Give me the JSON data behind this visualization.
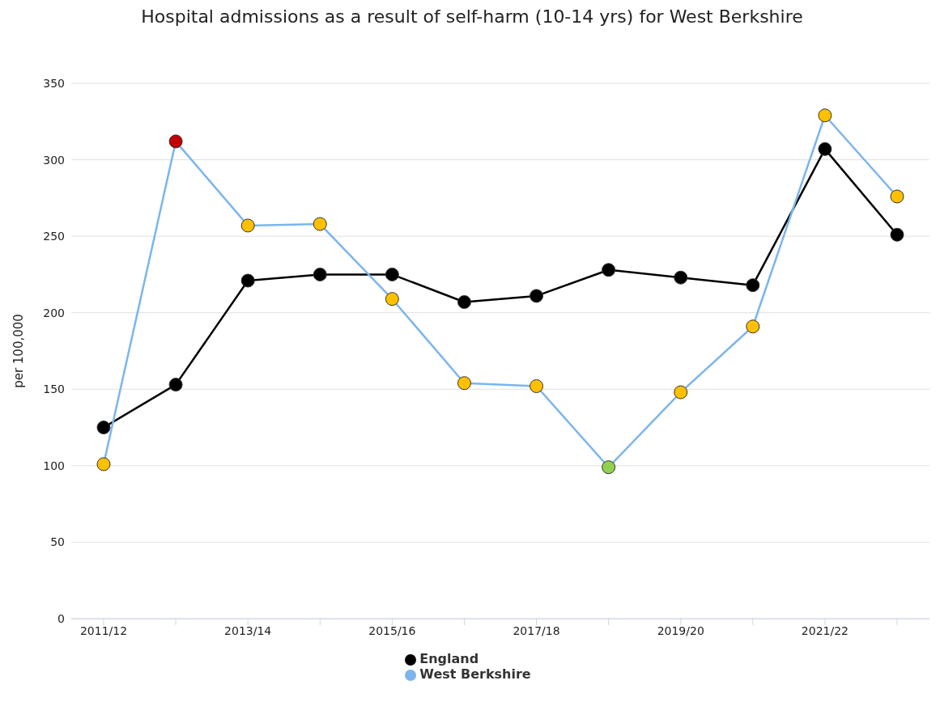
{
  "chart_data": {
    "type": "line",
    "title": "Hospital admissions as a result of self-harm (10-14 yrs) for West Berkshire",
    "ylabel": "per 100,000",
    "categories": [
      "2011/12",
      null,
      "2013/14",
      null,
      "2015/16",
      null,
      "2017/18",
      null,
      "2019/20",
      null,
      "2021/22",
      null
    ],
    "series": [
      {
        "name": "England",
        "color": "#000000",
        "values": [
          125,
          153,
          221,
          225,
          225,
          207,
          211,
          228,
          223,
          218,
          307,
          251
        ]
      },
      {
        "name": "West Berkshire",
        "color": "#7cb5ec",
        "colors": [
          "#ffc000",
          "#c00000",
          "#ffc000",
          "#ffc000",
          "#ffc000",
          "#ffc000",
          "#ffc000",
          "#92d050",
          "#ffc000",
          "#ffc000",
          "#ffc000",
          "#ffc000"
        ],
        "values": [
          101,
          312,
          257,
          258,
          209,
          154,
          152,
          99,
          148,
          191,
          329,
          276
        ]
      }
    ],
    "ylim": [
      0,
      350
    ],
    "yticks": [
      0,
      50,
      100,
      150,
      200,
      250,
      300,
      350
    ],
    "grid": "y",
    "legend": "bottom",
    "marker": "circle"
  }
}
